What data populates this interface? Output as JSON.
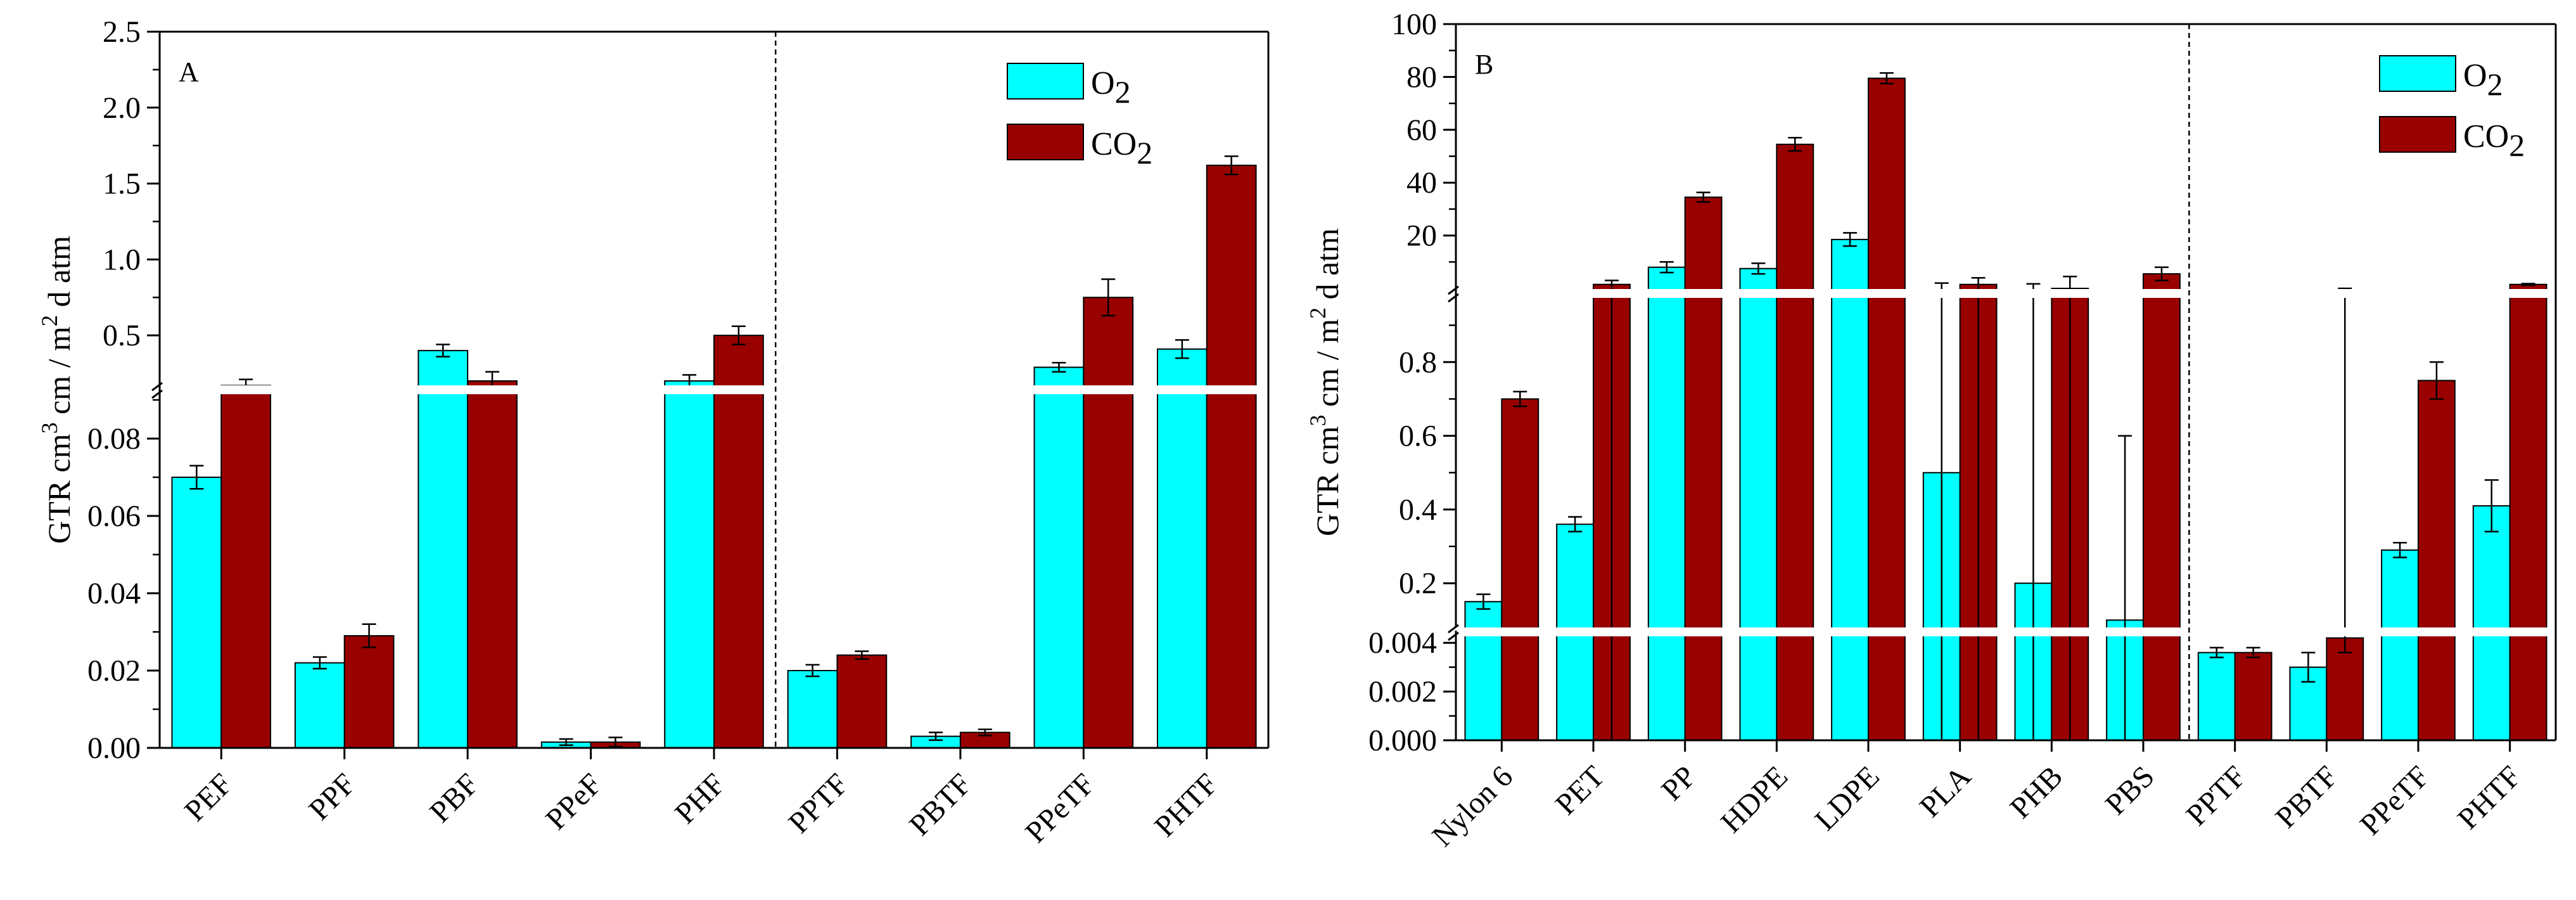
{
  "chart_data": [
    {
      "type": "bar",
      "panel_label": "A",
      "ylabel": [
        "GTR",
        "cm",
        "3",
        " cm / m",
        "2",
        " d atm"
      ],
      "categories": [
        "PEF",
        "PPF",
        "PBF",
        "PPeF",
        "PHF",
        "PPTF",
        "PBTF",
        "PPeTF",
        "PHTF"
      ],
      "legend": [
        {
          "base": "O",
          "sub": "2"
        },
        {
          "base": "CO",
          "sub": "2"
        }
      ],
      "colors": {
        "O2": "#00ffff",
        "CO2": "#990000",
        "error": "#000000",
        "break": "#ffffff"
      },
      "series": [
        {
          "name": "O2",
          "values": [
            0.07,
            0.022,
            0.4,
            0.0015,
            0.2,
            0.02,
            0.003,
            0.29,
            0.41
          ],
          "errors": [
            0.003,
            0.0015,
            0.04,
            0.0008,
            0.04,
            0.0015,
            0.001,
            0.03,
            0.06
          ]
        },
        {
          "name": "CO2",
          "values": [
            0.17,
            0.029,
            0.2,
            0.0015,
            0.5,
            0.024,
            0.004,
            0.75,
            1.62
          ],
          "errors": [
            0.04,
            0.003,
            0.06,
            0.0012,
            0.06,
            0.001,
            0.0008,
            0.12,
            0.06
          ]
        }
      ],
      "divider_after_index": 4,
      "axis_break": {
        "lower_max": 0.1,
        "upper_min": 0.1
      },
      "lower_ticks": [
        "0.00",
        "0.02",
        "0.04",
        "0.06",
        "0.08"
      ],
      "upper_ticks": [
        "0.5",
        "1.0",
        "1.5",
        "2.0",
        "2.5"
      ],
      "lower_ylim": [
        0,
        0.1
      ],
      "upper_ylim": [
        0.1,
        2.5
      ]
    },
    {
      "type": "bar",
      "panel_label": "B",
      "ylabel": [
        "GTR",
        "cm",
        "3",
        " cm / m",
        "2",
        " d atm"
      ],
      "categories": [
        "Nylon 6",
        "PET",
        "PP",
        "HDPE",
        "LDPE",
        "PLA",
        "PHB",
        "PBS",
        "PPTF",
        "PBTF",
        "PPeTF",
        "PHTF"
      ],
      "legend": [
        {
          "base": "O",
          "sub": "2"
        },
        {
          "base": "CO",
          "sub": "2"
        }
      ],
      "colors": {
        "O2": "#00ffff",
        "CO2": "#990000",
        "error": "#000000",
        "break": "#ffffff"
      },
      "series": [
        {
          "name": "O2",
          "values": [
            0.15,
            0.36,
            8,
            7.5,
            18.5,
            0.5,
            0.2,
            0.1,
            0.0036,
            0.003,
            0.29,
            0.41
          ],
          "errors": [
            0.02,
            0.02,
            2,
            2,
            2.5,
            1.5,
            1.5,
            0.5,
            0.0002,
            0.0006,
            0.02,
            0.07
          ]
        },
        {
          "name": "CO2",
          "values": [
            0.7,
            1.5,
            34.5,
            54.5,
            79.5,
            1.5,
            1,
            5.5,
            0.0036,
            0.0042,
            0.75,
            1.5
          ]
        },
        {
          "name": "CO2_errors",
          "values": [
            0.02,
            1.5,
            1.8,
            2.5,
            2,
            2.5,
            3.5,
            2.5,
            0.0002,
            0.0006,
            0.05,
            0.3
          ]
        }
      ],
      "divider_after_index": 7,
      "axis_breaks": [
        0.0045,
        1.0
      ],
      "lower_ticks": [
        "0.000",
        "0.002",
        "0.004"
      ],
      "middle_ticks": [
        "0.2",
        "0.4",
        "0.6",
        "0.8"
      ],
      "upper_ticks": [
        "20",
        "40",
        "60",
        "80",
        "100"
      ],
      "lower_ylim": [
        0,
        0.0045
      ],
      "middle_ylim": [
        0.08,
        1.0
      ],
      "upper_ylim": [
        0,
        100
      ]
    }
  ]
}
